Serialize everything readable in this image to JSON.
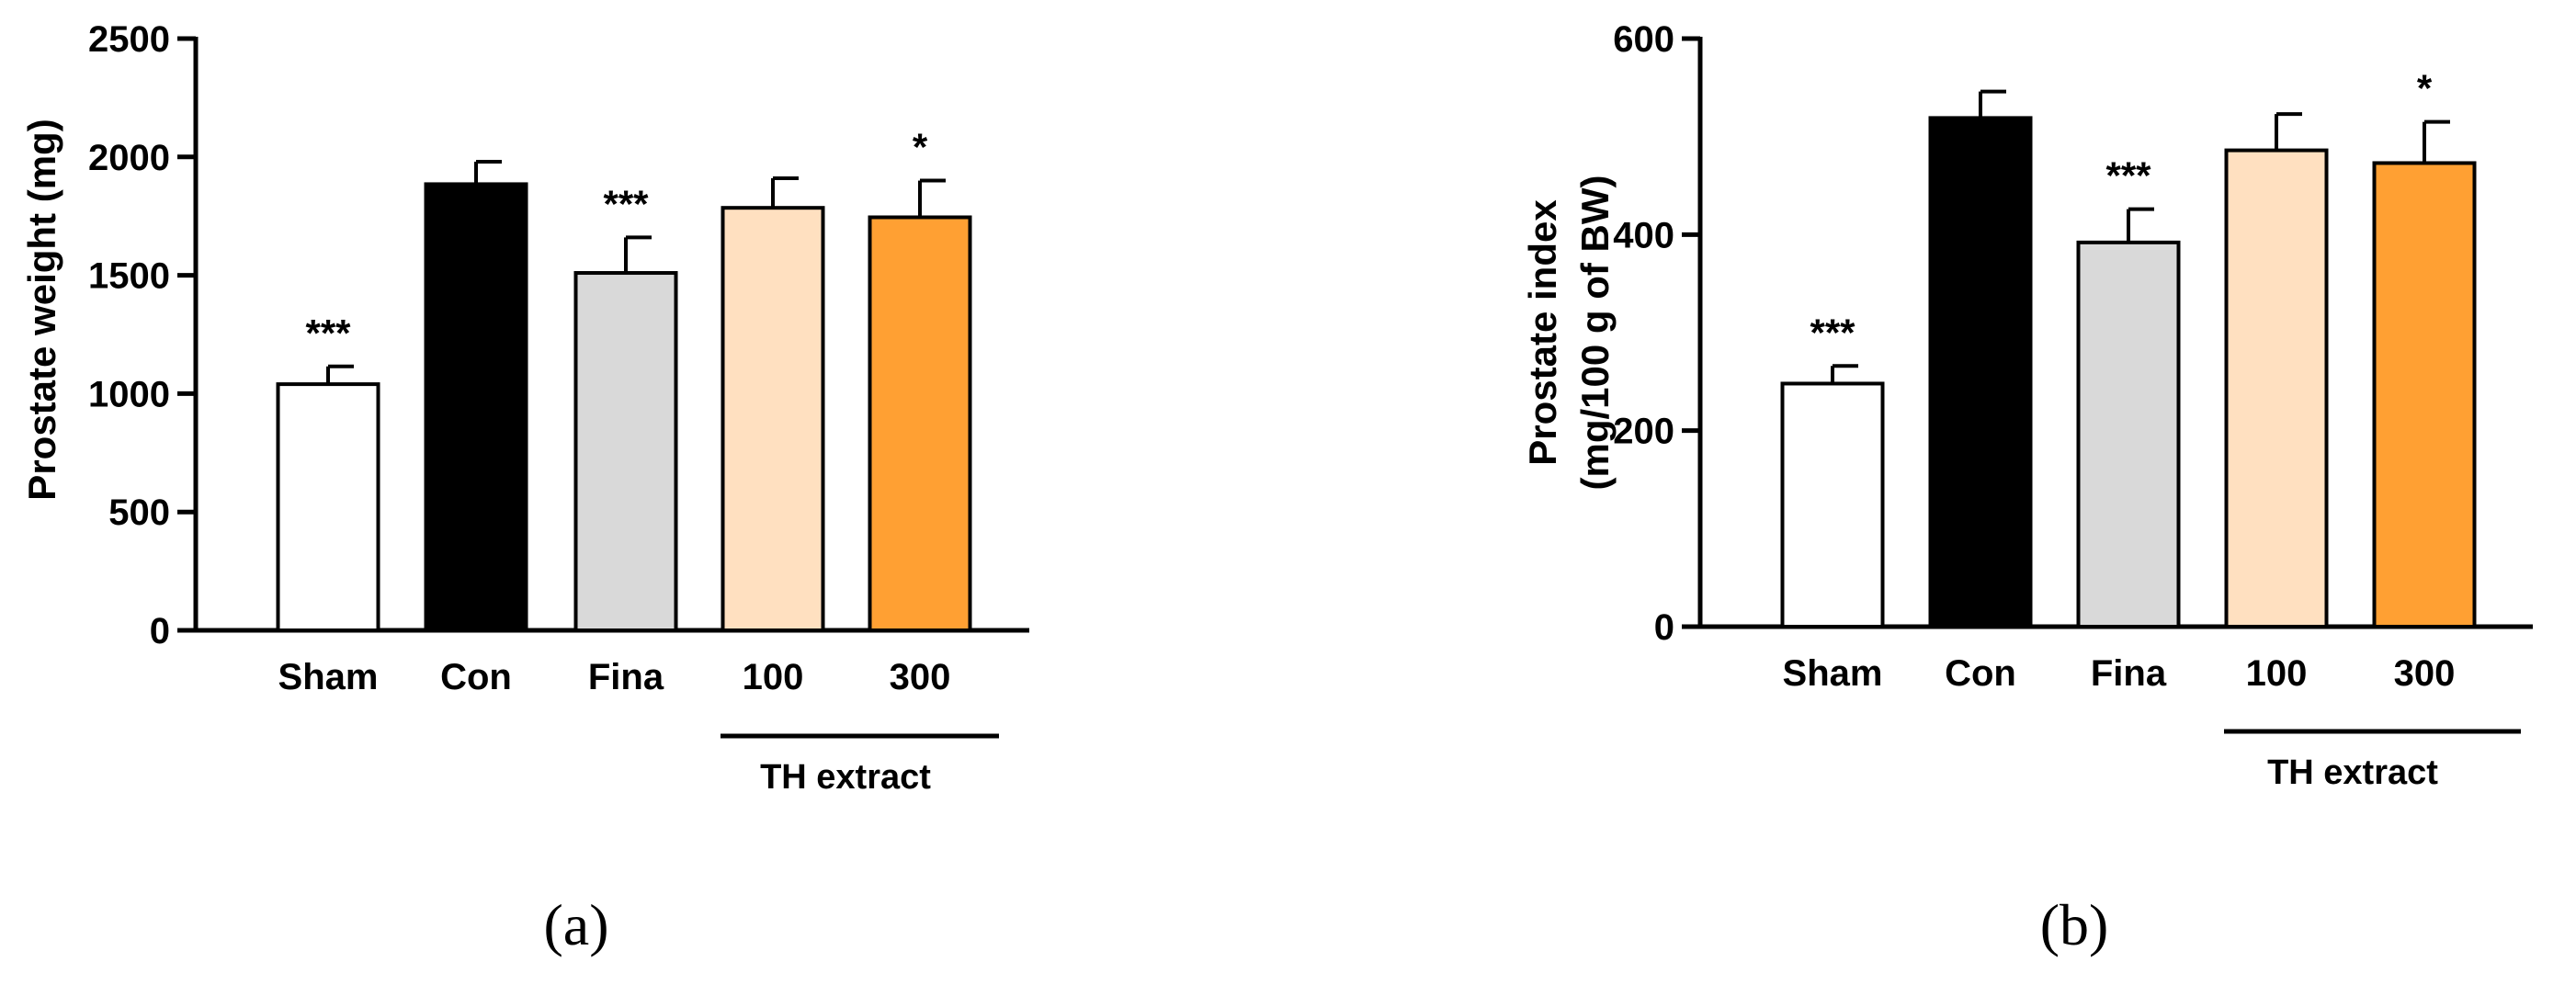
{
  "chart_data": [
    {
      "type": "bar",
      "panel_label": "(a)",
      "title": "",
      "xlabel": "",
      "ylabel": "Prostate weight (mg)",
      "categories": [
        "Sham",
        "Con",
        "Fina",
        "100",
        "300"
      ],
      "values": [
        1040,
        1885,
        1510,
        1785,
        1745
      ],
      "errors": [
        75,
        95,
        150,
        125,
        155
      ],
      "significance": [
        "***",
        "",
        "***",
        "",
        "*"
      ],
      "colors": [
        "#ffffff",
        "#000000",
        "#d9d9d9",
        "#ffe0c0",
        "#ffa033"
      ],
      "group_label": "TH extract",
      "ylim": [
        0,
        2500
      ],
      "yticks": [
        "0",
        "500",
        "1000",
        "1500",
        "2000",
        "2500"
      ],
      "grid": false
    },
    {
      "type": "bar",
      "panel_label": "(b)",
      "title": "",
      "xlabel": "",
      "ylabel_lines": [
        "Prostate index",
        "(mg/100 g of BW)"
      ],
      "categories": [
        "Sham",
        "Con",
        "Fina",
        "100",
        "300"
      ],
      "values": [
        248,
        519,
        392,
        486,
        473
      ],
      "errors": [
        18,
        27,
        34,
        37,
        42
      ],
      "significance": [
        "***",
        "",
        "***",
        "",
        "*"
      ],
      "colors": [
        "#ffffff",
        "#000000",
        "#d9d9d9",
        "#ffe0c0",
        "#ffa033"
      ],
      "group_label": "TH extract",
      "ylim": [
        0,
        600
      ],
      "yticks": [
        "0",
        "200",
        "400",
        "600"
      ],
      "grid": false
    }
  ]
}
